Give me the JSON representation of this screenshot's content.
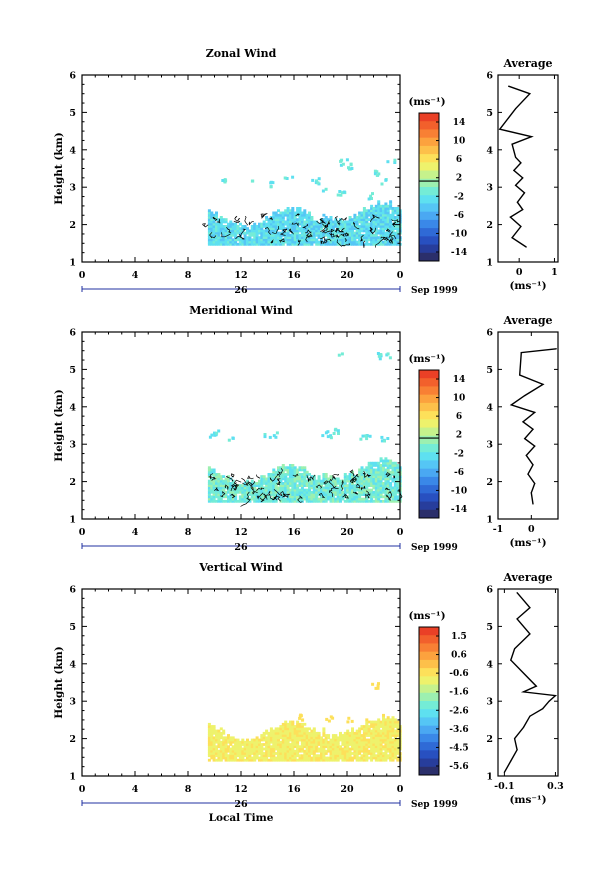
{
  "date_label": "Sep 1999",
  "day_label": "26",
  "common_xlabel": "Local Time",
  "colors": {
    "colormap": [
      "#2b2f6b",
      "#273d9c",
      "#2850c0",
      "#2f6ad6",
      "#3a88e8",
      "#4aa8f2",
      "#55c6f5",
      "#5ee0f0",
      "#74ecd6",
      "#9cf0b0",
      "#c6f28c",
      "#eef26c",
      "#fde05a",
      "#fdc04a",
      "#fca23e",
      "#f88034",
      "#f2602c",
      "#ea4026"
    ],
    "contour": "#000000",
    "profile": "#000000"
  },
  "chart_data": [
    {
      "type": "heatmap",
      "title": "Zonal Wind",
      "xlabel": "",
      "ylabel": "Height (km)",
      "xlim": [
        0,
        24
      ],
      "ylim": [
        1,
        6
      ],
      "x_ticks": [
        "0",
        "4",
        "8",
        "12",
        "16",
        "20",
        "0"
      ],
      "y_ticks": [
        "1",
        "2",
        "3",
        "4",
        "5",
        "6"
      ],
      "colorbar_label": "(ms⁻¹)",
      "colorbar_ticks": [
        "14",
        "10",
        "6",
        "2",
        "-2",
        "-6",
        "-10",
        "-14"
      ],
      "data_extent": {
        "hours": [
          9.5,
          24
        ],
        "height_km": [
          1.45,
          3.8
        ]
      },
      "dominant_value": -3,
      "contours": true,
      "profile": {
        "title": "Average",
        "xlabel": "(ms⁻¹)",
        "xlim": [
          -0.6,
          1.1
        ],
        "x_ticks": [
          "0",
          "1"
        ],
        "y_ticks": [
          "1",
          "2",
          "3",
          "4",
          "5",
          "6"
        ],
        "values": [
          [
            0.2,
            1.4
          ],
          [
            -0.2,
            1.65
          ],
          [
            0.05,
            1.95
          ],
          [
            -0.25,
            2.2
          ],
          [
            0.1,
            2.4
          ],
          [
            -0.05,
            2.6
          ],
          [
            0.15,
            2.85
          ],
          [
            -0.1,
            3.05
          ],
          [
            0.1,
            3.25
          ],
          [
            -0.15,
            3.45
          ],
          [
            0.05,
            3.65
          ],
          [
            -0.1,
            3.8
          ],
          [
            -0.2,
            4.15
          ],
          [
            0.35,
            4.35
          ],
          [
            -0.55,
            4.55
          ],
          [
            -0.1,
            5.1
          ],
          [
            0.3,
            5.5
          ],
          [
            -0.3,
            5.7
          ]
        ]
      }
    },
    {
      "type": "heatmap",
      "title": "Meridional Wind",
      "xlabel": "",
      "ylabel": "Height (km)",
      "xlim": [
        0,
        24
      ],
      "ylim": [
        1,
        6
      ],
      "x_ticks": [
        "0",
        "4",
        "8",
        "12",
        "16",
        "20",
        "0"
      ],
      "y_ticks": [
        "1",
        "2",
        "3",
        "4",
        "5",
        "6"
      ],
      "colorbar_label": "(ms⁻¹)",
      "colorbar_ticks": [
        "14",
        "10",
        "6",
        "2",
        "-2",
        "-6",
        "-10",
        "-14"
      ],
      "data_extent": {
        "hours": [
          9.5,
          24
        ],
        "height_km": [
          1.45,
          5.4
        ]
      },
      "dominant_value": -1,
      "contours": true,
      "profile": {
        "title": "Average",
        "xlabel": "(ms⁻¹)",
        "xlim": [
          -1,
          0.8
        ],
        "x_ticks": [
          "-1",
          "0"
        ],
        "y_ticks": [
          "1",
          "2",
          "3",
          "4",
          "5",
          "6"
        ],
        "values": [
          [
            0.05,
            1.4
          ],
          [
            0.0,
            1.7
          ],
          [
            0.1,
            1.95
          ],
          [
            -0.1,
            2.2
          ],
          [
            0.05,
            2.45
          ],
          [
            -0.15,
            2.7
          ],
          [
            0.1,
            2.95
          ],
          [
            -0.2,
            3.15
          ],
          [
            0.05,
            3.4
          ],
          [
            -0.25,
            3.6
          ],
          [
            0.1,
            3.85
          ],
          [
            -0.6,
            4.05
          ],
          [
            -0.2,
            4.3
          ],
          [
            0.35,
            4.6
          ],
          [
            -0.35,
            4.85
          ],
          [
            -0.3,
            5.45
          ],
          [
            0.75,
            5.55
          ]
        ]
      }
    },
    {
      "type": "heatmap",
      "title": "Vertical Wind",
      "xlabel": "Local Time",
      "ylabel": "Height (km)",
      "xlim": [
        0,
        24
      ],
      "ylim": [
        1,
        6
      ],
      "x_ticks": [
        "0",
        "4",
        "8",
        "12",
        "16",
        "20",
        "0"
      ],
      "y_ticks": [
        "1",
        "2",
        "3",
        "4",
        "5",
        "6"
      ],
      "colorbar_label": "(ms⁻¹)",
      "colorbar_ticks": [
        "1.5",
        "0.6",
        "-0.6",
        "-1.6",
        "-2.6",
        "-3.6",
        "-4.5",
        "-5.6"
      ],
      "data_extent": {
        "hours": [
          9.5,
          24
        ],
        "height_km": [
          1.4,
          3.5
        ]
      },
      "dominant_value": -0.4,
      "contours": false,
      "profile": {
        "title": "Average",
        "xlabel": "(ms⁻¹)",
        "xlim": [
          -0.15,
          0.32
        ],
        "x_ticks": [
          "-0.1",
          "0.3"
        ],
        "y_ticks": [
          "1",
          "2",
          "3",
          "4",
          "5",
          "6"
        ],
        "values": [
          [
            -0.1,
            1.1
          ],
          [
            -0.05,
            1.4
          ],
          [
            0.0,
            1.7
          ],
          [
            -0.02,
            2.0
          ],
          [
            0.05,
            2.3
          ],
          [
            0.1,
            2.6
          ],
          [
            0.2,
            2.8
          ],
          [
            0.25,
            3.0
          ],
          [
            0.3,
            3.15
          ],
          [
            0.05,
            3.25
          ],
          [
            0.15,
            3.4
          ],
          [
            -0.05,
            4.1
          ],
          [
            -0.02,
            4.4
          ],
          [
            0.1,
            4.8
          ],
          [
            0.0,
            5.2
          ],
          [
            0.1,
            5.5
          ],
          [
            0.0,
            5.9
          ]
        ]
      }
    }
  ]
}
